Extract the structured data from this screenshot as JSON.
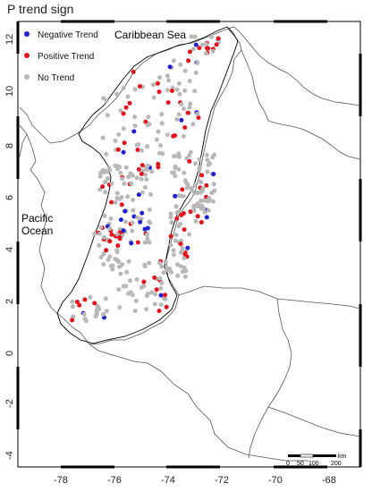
{
  "title": "P trend sign",
  "legend": [
    {
      "label": "Negative Trend",
      "color": "#1f1fd6"
    },
    {
      "label": "Positive Trend",
      "color": "#e3121b"
    },
    {
      "label": "No Trend",
      "color": "#b8b8b8"
    }
  ],
  "places": {
    "sea": "Caribbean Sea",
    "ocean_line1": "Pacific",
    "ocean_line2": "Ocean"
  },
  "scale": {
    "unit": "km",
    "labels": [
      "0",
      "50",
      "100",
      "200"
    ]
  },
  "axes": {
    "lon_labels": [
      "-78",
      "-76",
      "-74",
      "-72",
      "-70",
      "-68"
    ],
    "lat_labels": [
      "12",
      "10",
      "8",
      "6",
      "4",
      "2",
      "0",
      "-2",
      "-4"
    ]
  }
}
